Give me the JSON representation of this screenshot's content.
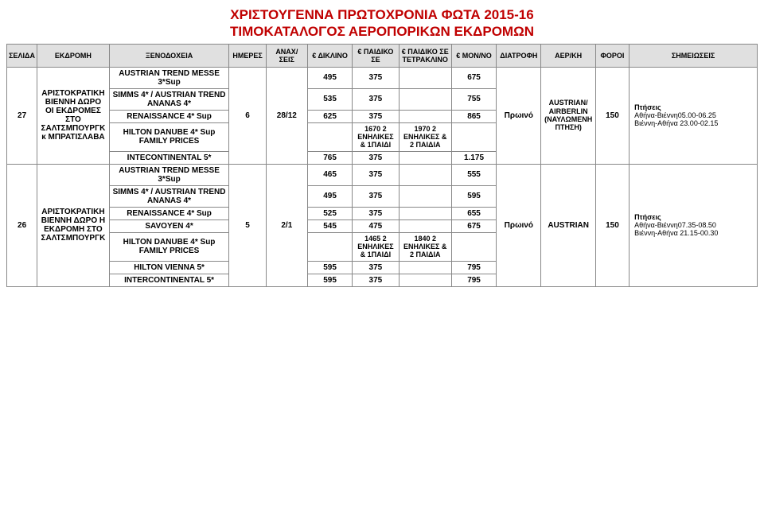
{
  "title_line1": "ΧΡΙΣΤΟΥΓΕΝΝΑ ΠΡΩΤΟΧΡΟΝΙΑ ΦΩΤΑ 2015-16",
  "title_line2": "ΤΙΜΟΚΑΤΑΛΟΓΟΣ ΑΕΡΟΠΟΡΙΚΩΝ ΕΚΔΡΟΜΩΝ",
  "headers": {
    "page": "ΣΕΛΙΔΑ",
    "trip": "ΕΚΔΡΟΜΗ",
    "hotel": "ΞΕΝΟΔΟΧΕΙΑ",
    "days": "ΗΜΕΡΕΣ",
    "departures": "ΑΝΑΧ/ΣΕΙΣ",
    "dbl": "€ ΔΙΚΛΙΝΟ",
    "kid1": "€ ΠΑΙΔΙΚΟ ΣΕ",
    "kid2": "€ ΠΑΙΔΙΚΟ ΣΕ ΤΕΤΡΑΚΛΙΝΟ",
    "single": "€ ΜΟΝ/ΝΟ",
    "meal": "ΔΙΑΤΡΟΦΗ",
    "airline": "ΑΕΡ/ΚΗ",
    "tax": "ΦΟΡΟΙ",
    "notes": "ΣΗΜΕΙΩΣΕΙΣ"
  },
  "block1": {
    "page": "27",
    "trip": "ΑΡΙΣΤΟΚΡΑΤΙΚΗ ΒΙΕΝΝΗ ΔΩΡΟ ΟΙ ΕΚΔΡΟΜΕΣ ΣΤΟ ΣΑΛΤΣΜΠΟΥΡΓΚ κ ΜΠΡΑΤΙΣΛΑΒΑ",
    "days": "6",
    "dep": "28/12",
    "meal": "Πρωινό",
    "air": "AUSTRIAN/ AIRBERLIN (ΝΑΥΛΩΜΕΝΗ ΠΤΗΣΗ)",
    "tax": "150",
    "notes_l1": "Πτήσεις",
    "notes_l2": "Αθήνα-Βιέννη05.00-06.25",
    "notes_l3": "Βιέννη-Αθήνα 23.00-02.15",
    "rows": [
      {
        "hotel": "AUSTRIAN TREND MESSE 3*Sup",
        "dbl": "495",
        "kid1": "375",
        "kid2": "",
        "single": "675"
      },
      {
        "hotel": "SIMMS 4* / AUSTRIAN TREND ANANAS 4*",
        "dbl": "535",
        "kid1": "375",
        "kid2": "",
        "single": "755"
      },
      {
        "hotel": "RENAISSANCE 4* Sup",
        "dbl": "625",
        "kid1": "375",
        "kid2": "",
        "single": "865"
      },
      {
        "hotel": "HILTON DANUBE 4* Sup FAMILY PRICES",
        "dbl": "",
        "kid1": "1670 2 ΕΝΗΛΙΚΕΣ & 1ΠΑΙΔΙ",
        "kid2": "1970 2 ΕΝΗΛΙΚΕΣ & 2 ΠΑΙΔΙΑ",
        "single": ""
      },
      {
        "hotel": "INTECONTINENTAL 5*",
        "dbl": "765",
        "kid1": "375",
        "kid2": "",
        "single": "1.175"
      }
    ]
  },
  "block2": {
    "page": "26",
    "trip": "ΑΡΙΣΤΟΚΡΑΤΙΚΗ ΒΙΕΝΝΗ ΔΩΡΟ Η ΕΚΔΡΟΜΗ ΣΤΟ ΣΑΛΤΣΜΠΟΥΡΓΚ",
    "days": "5",
    "dep": "2/1",
    "meal": "Πρωινό",
    "air": "AUSTRIAN",
    "tax": "150",
    "notes_l1": "Πτήσεις",
    "notes_l2": "Αθήνα-Βιέννη07.35-08.50",
    "notes_l3": "Βιέννη-Αθήνα 21.15-00.30",
    "rows": [
      {
        "hotel": "AUSTRIAN TREND MESSE 3*Sup",
        "dbl": "465",
        "kid1": "375",
        "kid2": "",
        "single": "555"
      },
      {
        "hotel": "SIMMS 4* / AUSTRIAN TREND ANANAS 4*",
        "dbl": "495",
        "kid1": "375",
        "kid2": "",
        "single": "595"
      },
      {
        "hotel": "RENAISSANCE 4* Sup",
        "dbl": "525",
        "kid1": "375",
        "kid2": "",
        "single": "655"
      },
      {
        "hotel": "SAVOYEN 4*",
        "dbl": "545",
        "kid1": "475",
        "kid2": "",
        "single": "675"
      },
      {
        "hotel": "HILTON DANUBE 4* Sup FAMILY PRICES",
        "dbl": "",
        "kid1": "1465 2 ΕΝΗΛΙΚΕΣ & 1ΠΑΙΔΙ",
        "kid2": "1840 2 ΕΝΗΛΙΚΕΣ & 2 ΠΑΙΔΙΑ",
        "single": ""
      },
      {
        "hotel": "HILTON VIENNA 5*",
        "dbl": "595",
        "kid1": "375",
        "kid2": "",
        "single": "795"
      },
      {
        "hotel": "INTERCONTINENTAL 5*",
        "dbl": "595",
        "kid1": "375",
        "kid2": "",
        "single": "795"
      }
    ]
  }
}
